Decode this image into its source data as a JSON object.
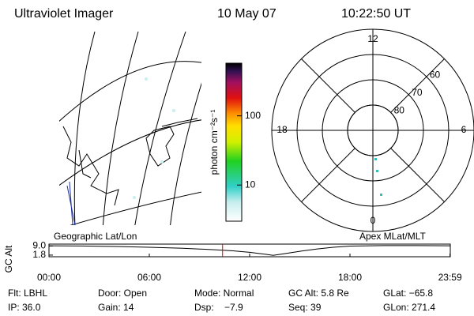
{
  "header": {
    "title": "Ultraviolet Imager",
    "date": "10 May 07",
    "time": "10:22:50 UT"
  },
  "map_panel": {
    "label": "Geographic Lat/Lon"
  },
  "colorbar": {
    "label": "photon cm⁻²s⁻¹",
    "clim": [
      3,
      577
    ],
    "ticks": [
      100,
      10
    ],
    "log": true
  },
  "polar_panel": {
    "label": "Apex MLat/MLT",
    "lat_limit": 50,
    "lat_ticks": [
      60,
      70,
      80
    ],
    "inner_ring": 80,
    "mlt_ticks": [
      12,
      18,
      6,
      0
    ]
  },
  "altitude_plot": {
    "ylabel": "GC Alt",
    "ylim": [
      0.5,
      10.5
    ],
    "yticks": [
      {
        "value": 9,
        "label": "9.0"
      },
      {
        "value": 1.8,
        "label": "1.8"
      }
    ],
    "xlim": [
      0,
      24
    ],
    "xticks": [
      {
        "value": 0,
        "label": "00:00"
      },
      {
        "value": 6,
        "label": "06:00"
      },
      {
        "value": 12,
        "label": "12:00"
      },
      {
        "value": 18,
        "label": "18:00"
      },
      {
        "value": 23.983,
        "label": "23:59"
      }
    ],
    "x": [
      0,
      2,
      4,
      6,
      8,
      10,
      11,
      12,
      13,
      13.4,
      14,
      15,
      16,
      17,
      18,
      20,
      22,
      23.983
    ],
    "values": [
      9.2,
      9.0,
      8.6,
      8.0,
      7.2,
      6.0,
      5.2,
      4.0,
      2.4,
      1.6,
      2.8,
      4.8,
      6.6,
      8.0,
      8.9,
      9.3,
      9.3,
      9.2
    ],
    "current_time": 10.381,
    "marker_color": "#e00000"
  },
  "status": {
    "rows": [
      [
        "Flt: LBHL",
        "Door: Open",
        "Mode: Normal",
        "GC Alt: 5.8 Re",
        "GLat: −65.8"
      ],
      [
        "IP: 36.0",
        "Gain: 14",
        "Dsp:    −7.9",
        "Seq: 39",
        "GLon: 271.4"
      ]
    ]
  }
}
